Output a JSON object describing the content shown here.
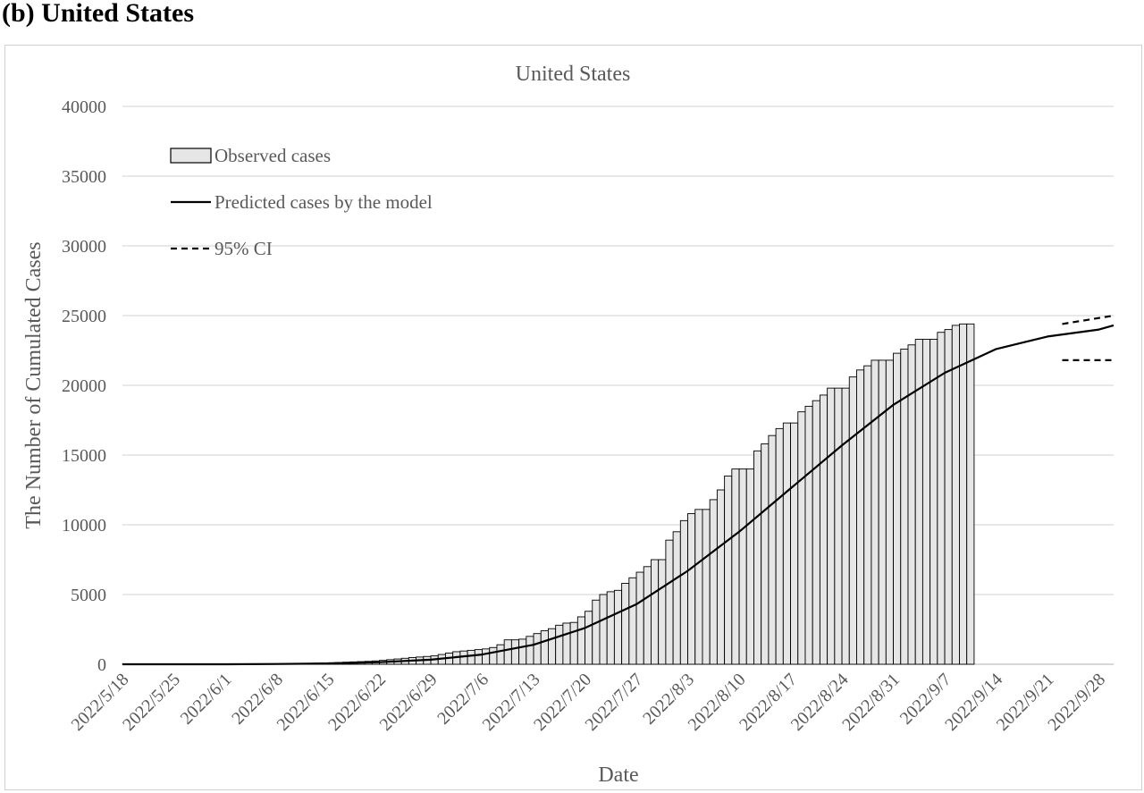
{
  "figure_label": "(b) United States",
  "chart_data": {
    "type": "bar",
    "title": "United States",
    "xlabel": "Date",
    "ylabel": "The Number of Cumulated Cases",
    "ylim": [
      0,
      40000
    ],
    "yticks": [
      0,
      5000,
      10000,
      15000,
      20000,
      25000,
      30000,
      35000,
      40000
    ],
    "x_start": "2022/5/18",
    "x_end": "2022/9/30",
    "xtick_labels": [
      "2022/5/18",
      "2022/5/25",
      "2022/6/1",
      "2022/6/8",
      "2022/6/15",
      "2022/6/22",
      "2022/6/29",
      "2022/7/6",
      "2022/7/13",
      "2022/7/20",
      "2022/7/27",
      "2022/8/3",
      "2022/8/10",
      "2022/8/17",
      "2022/8/24",
      "2022/8/31",
      "2022/9/7",
      "2022/9/14",
      "2022/9/21",
      "2022/9/28"
    ],
    "grid": true,
    "legend_position": "top-left",
    "legend": {
      "observed": "Observed cases",
      "predicted": "Predicted cases by the model",
      "ci": "95% CI"
    },
    "series": [
      {
        "name": "Observed cases",
        "type": "bar",
        "color": "#e6e6e6",
        "x_first": "2022/5/18",
        "x_last": "2022/9/23",
        "values": [
          2,
          2,
          2,
          2,
          2,
          2,
          2,
          2,
          2,
          2,
          2,
          2,
          2,
          3,
          3,
          5,
          6,
          8,
          10,
          15,
          20,
          25,
          30,
          40,
          50,
          65,
          80,
          100,
          110,
          130,
          150,
          170,
          190,
          210,
          240,
          280,
          330,
          380,
          430,
          480,
          520,
          560,
          600,
          700,
          800,
          900,
          950,
          1000,
          1050,
          1100,
          1200,
          1400,
          1750,
          1750,
          1800,
          2000,
          2200,
          2400,
          2550,
          2800,
          2950,
          3000,
          3400,
          3800,
          4600,
          5000,
          5200,
          5300,
          5800,
          6200,
          6600,
          7000,
          7500,
          7500,
          8900,
          9500,
          10300,
          10800,
          11100,
          11100,
          11800,
          12500,
          13500,
          14000,
          14000,
          14000,
          15300,
          15800,
          16400,
          16900,
          17300,
          17300,
          18100,
          18500,
          18900,
          19300,
          19800,
          19800,
          19800,
          20600,
          21100,
          21400,
          21800,
          21800,
          21800,
          22300,
          22600,
          22900,
          23300,
          23300,
          23300,
          23800,
          24000,
          24300,
          24400,
          24400
        ]
      },
      {
        "name": "Predicted cases by the model",
        "type": "line",
        "color": "#000000",
        "x": [
          "2022/5/18",
          "2022/6/1",
          "2022/6/8",
          "2022/6/15",
          "2022/6/22",
          "2022/6/29",
          "2022/7/6",
          "2022/7/13",
          "2022/7/20",
          "2022/7/27",
          "2022/8/3",
          "2022/8/10",
          "2022/8/17",
          "2022/8/24",
          "2022/8/31",
          "2022/9/7",
          "2022/9/14",
          "2022/9/21",
          "2022/9/28",
          "2022/9/30"
        ],
        "values": [
          0,
          0,
          20,
          60,
          150,
          330,
          700,
          1400,
          2600,
          4300,
          6700,
          9500,
          12600,
          15700,
          18600,
          20900,
          22600,
          23500,
          24000,
          24300
        ]
      },
      {
        "name": "95% CI upper",
        "type": "line",
        "style": "dashed",
        "color": "#000000",
        "x": [
          "2022/9/23",
          "2022/9/30"
        ],
        "values": [
          24400,
          25000
        ]
      },
      {
        "name": "95% CI lower",
        "type": "line",
        "style": "dashed",
        "color": "#000000",
        "x": [
          "2022/9/23",
          "2022/9/30"
        ],
        "values": [
          21800,
          21800
        ]
      }
    ]
  }
}
